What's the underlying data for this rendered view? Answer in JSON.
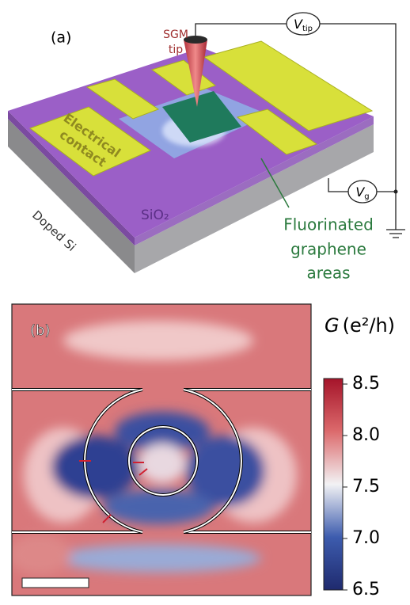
{
  "panel_a": {
    "label": "(a)",
    "tip_label": [
      "SGM",
      "tip"
    ],
    "tip_voltage": {
      "symbol": "V",
      "subscript": "tip"
    },
    "gate_voltage": {
      "symbol": "V",
      "subscript": "g"
    },
    "contact_label": [
      "Electrical",
      "contact"
    ],
    "oxide_label": "SiO₂",
    "substrate_label": "Doped Si",
    "graphene_label": [
      "Fluorinated",
      "graphene",
      "areas"
    ]
  },
  "panel_b": {
    "label": "(b)",
    "colorbar": {
      "title": {
        "symbol": "G",
        "unit": "(e²/h)"
      },
      "lim": [
        6.5,
        8.5
      ],
      "ticks": [
        6.5,
        {
          "value": 7,
          "label": "7.0"
        },
        7.5,
        {
          "value": 8,
          "label": "8.0"
        },
        8.5
      ]
    }
  }
}
